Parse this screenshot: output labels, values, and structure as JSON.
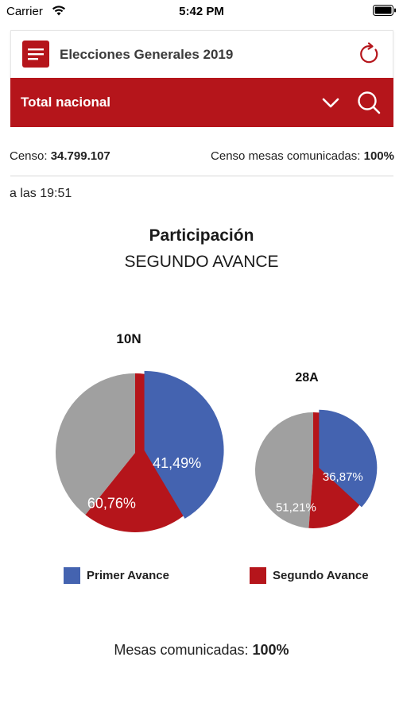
{
  "status_bar": {
    "carrier": "Carrier",
    "time": "5:42 PM"
  },
  "header": {
    "title": "Elecciones Generales 2019",
    "menu_icon": "hamburger-menu-icon",
    "refresh_icon": "refresh-icon"
  },
  "region_bar": {
    "label": "Total nacional",
    "dropdown_icon": "chevron-down-icon",
    "search_icon": "search-icon"
  },
  "census": {
    "label": "Censo:",
    "value": "34.799.107",
    "mesas_label": "Censo mesas comunicadas:",
    "mesas_value": "100%"
  },
  "timestamp": "a las 19:51",
  "chart": {
    "title": "Participación",
    "subtitle": "SEGUNDO AVANCE"
  },
  "chart_data": [
    {
      "type": "pie",
      "title": "10N",
      "series": [
        {
          "name": "Primer Avance",
          "value": 41.49,
          "label": "41,49%",
          "color": "#4463b0"
        },
        {
          "name": "Segundo Avance",
          "value": 60.76,
          "label": "60,76%",
          "color": "#b5151b"
        }
      ]
    },
    {
      "type": "pie",
      "title": "28A",
      "series": [
        {
          "name": "Primer Avance",
          "value": 36.87,
          "label": "36,87%",
          "color": "#4463b0"
        },
        {
          "name": "Segundo Avance",
          "value": 51.21,
          "label": "51,21%",
          "color": "#b5151b"
        }
      ]
    }
  ],
  "legend": {
    "items": [
      {
        "label": "Primer Avance",
        "color": "#4463b0"
      },
      {
        "label": "Segundo Avance",
        "color": "#b5151b"
      }
    ],
    "placement": "bottom"
  },
  "footer": {
    "mesas_label": "Mesas comunicadas:",
    "mesas_value": "100%"
  },
  "colors": {
    "accent": "#b5151b",
    "blue": "#4463b0",
    "gray": "#a0a0a0"
  }
}
